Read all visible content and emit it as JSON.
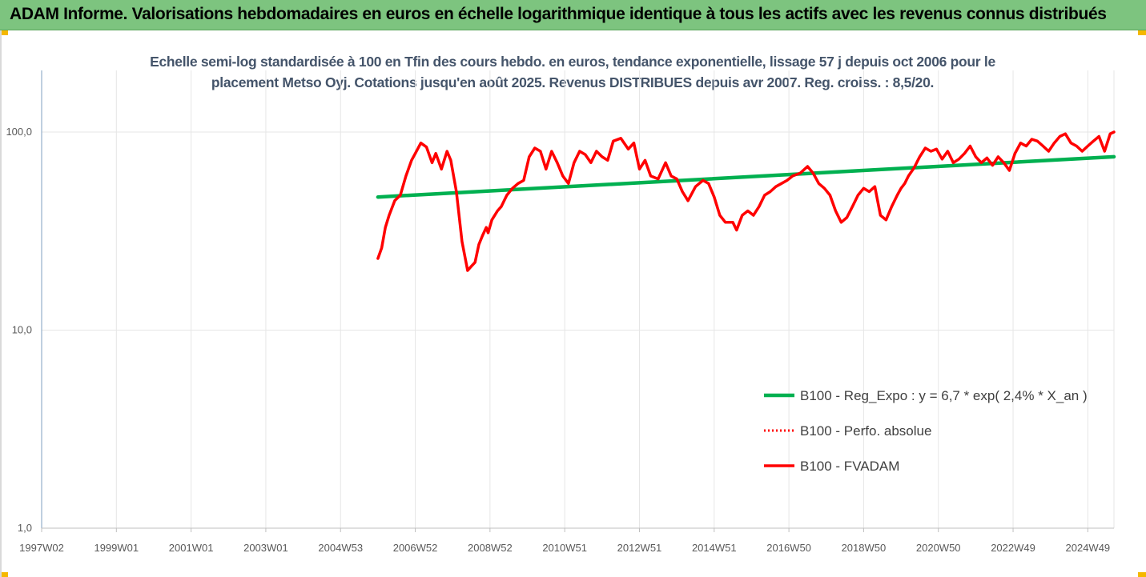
{
  "banner": {
    "title": "ADAM Informe. Valorisations hebdomadaires en euros en échelle logarithmique identique à tous les actifs avec les revenus connus distribués"
  },
  "colors": {
    "banner_bg": "#7dc47f",
    "trend": "#00b050",
    "fvadam": "#ff0000",
    "perf": "#ff0000",
    "grid": "#e6e6e6",
    "subtitle": "#44546a"
  },
  "chart_data": {
    "type": "line",
    "title_line1": "Echelle semi-log standardisée à 100 en Tfin des cours hebdo. en euros, tendance exponentielle, lissage 57 j depuis oct 2006 pour le",
    "title_line2": "placement Metso Oyj. Cotations jusqu'en août 2025. Revenus DISTRIBUES depuis avr 2007. Reg. croiss. : 8,5/20.",
    "y_scale": "log",
    "ylim": [
      1,
      200
    ],
    "y_ticks": [
      1,
      10,
      100
    ],
    "y_tick_labels": [
      "1,0",
      "10,0",
      "100,0"
    ],
    "xlim": [
      1997.0,
      2025.7
    ],
    "x_ticks": [
      1997.0,
      1999.0,
      2001.0,
      2003.0,
      2005.0,
      2007.0,
      2009.0,
      2011.0,
      2013.0,
      2015.0,
      2017.0,
      2019.0,
      2021.0,
      2023.0,
      2025.0
    ],
    "x_tick_labels": [
      "1997W02",
      "1999W01",
      "2001W01",
      "2003W01",
      "2004W53",
      "2006W52",
      "2008W52",
      "2010W51",
      "2012W51",
      "2014W51",
      "2016W50",
      "2018W50",
      "2020W50",
      "2022W49",
      "2024W49"
    ],
    "grid": "vertical",
    "legend_position": "bottom-right",
    "series": [
      {
        "name": "B100 - Reg_Expo : y = 6,7 * exp( 2,4% *  X_an )",
        "style": "solid-green",
        "x": [
          2006.0,
          2025.7
        ],
        "y": [
          47,
          75
        ]
      },
      {
        "name": "B100 - Perfo. absolue",
        "style": "dotted-red",
        "x": [],
        "y": []
      },
      {
        "name": "B100 - FVADAM",
        "style": "solid-red",
        "x": [
          2006.0,
          2006.1,
          2006.2,
          2006.3,
          2006.45,
          2006.6,
          2006.75,
          2006.9,
          2007.0,
          2007.15,
          2007.3,
          2007.45,
          2007.55,
          2007.7,
          2007.85,
          2007.95,
          2008.1,
          2008.25,
          2008.4,
          2008.5,
          2008.6,
          2008.7,
          2008.8,
          2008.9,
          2008.95,
          2009.05,
          2009.2,
          2009.3,
          2009.45,
          2009.6,
          2009.75,
          2009.9,
          2010.05,
          2010.2,
          2010.35,
          2010.5,
          2010.65,
          2010.8,
          2010.95,
          2011.1,
          2011.25,
          2011.4,
          2011.55,
          2011.7,
          2011.85,
          2012.0,
          2012.15,
          2012.3,
          2012.5,
          2012.7,
          2012.85,
          2013.0,
          2013.15,
          2013.3,
          2013.5,
          2013.7,
          2013.85,
          2014.0,
          2014.15,
          2014.3,
          2014.5,
          2014.7,
          2014.85,
          2015.0,
          2015.15,
          2015.3,
          2015.5,
          2015.6,
          2015.75,
          2015.9,
          2016.05,
          2016.2,
          2016.35,
          2016.5,
          2016.65,
          2016.8,
          2016.95,
          2017.1,
          2017.3,
          2017.5,
          2017.65,
          2017.8,
          2017.95,
          2018.1,
          2018.25,
          2018.4,
          2018.55,
          2018.7,
          2018.85,
          2019.0,
          2019.15,
          2019.3,
          2019.45,
          2019.6,
          2019.75,
          2019.9,
          2020.0,
          2020.1,
          2020.2,
          2020.35,
          2020.5,
          2020.65,
          2020.8,
          2020.95,
          2021.1,
          2021.25,
          2021.4,
          2021.55,
          2021.7,
          2021.85,
          2022.0,
          2022.15,
          2022.3,
          2022.45,
          2022.6,
          2022.75,
          2022.9,
          2023.05,
          2023.2,
          2023.35,
          2023.5,
          2023.65,
          2023.8,
          2023.95,
          2024.1,
          2024.25,
          2024.4,
          2024.55,
          2024.7,
          2024.85,
          2025.0,
          2025.15,
          2025.3,
          2025.45,
          2025.6,
          2025.7
        ],
        "y": [
          23,
          26,
          33,
          38,
          45,
          48,
          60,
          72,
          78,
          88,
          84,
          70,
          78,
          65,
          80,
          72,
          50,
          28,
          20,
          21,
          22,
          27,
          30,
          33,
          31,
          36,
          40,
          42,
          48,
          52,
          55,
          57,
          75,
          83,
          80,
          65,
          80,
          70,
          60,
          55,
          70,
          80,
          77,
          70,
          80,
          75,
          72,
          90,
          93,
          82,
          88,
          65,
          72,
          60,
          58,
          70,
          60,
          58,
          50,
          45,
          53,
          57,
          55,
          47,
          38,
          35,
          35,
          32,
          38,
          40,
          38,
          42,
          48,
          50,
          53,
          55,
          57,
          60,
          62,
          67,
          62,
          55,
          52,
          48,
          40,
          35,
          37,
          42,
          48,
          52,
          50,
          53,
          38,
          36,
          42,
          48,
          52,
          55,
          60,
          66,
          75,
          83,
          80,
          82,
          73,
          80,
          70,
          73,
          78,
          85,
          75,
          70,
          74,
          68,
          75,
          70,
          64,
          78,
          88,
          85,
          92,
          90,
          85,
          80,
          88,
          95,
          98,
          88,
          85,
          80,
          85,
          90,
          95,
          80,
          98,
          100
        ]
      }
    ]
  }
}
